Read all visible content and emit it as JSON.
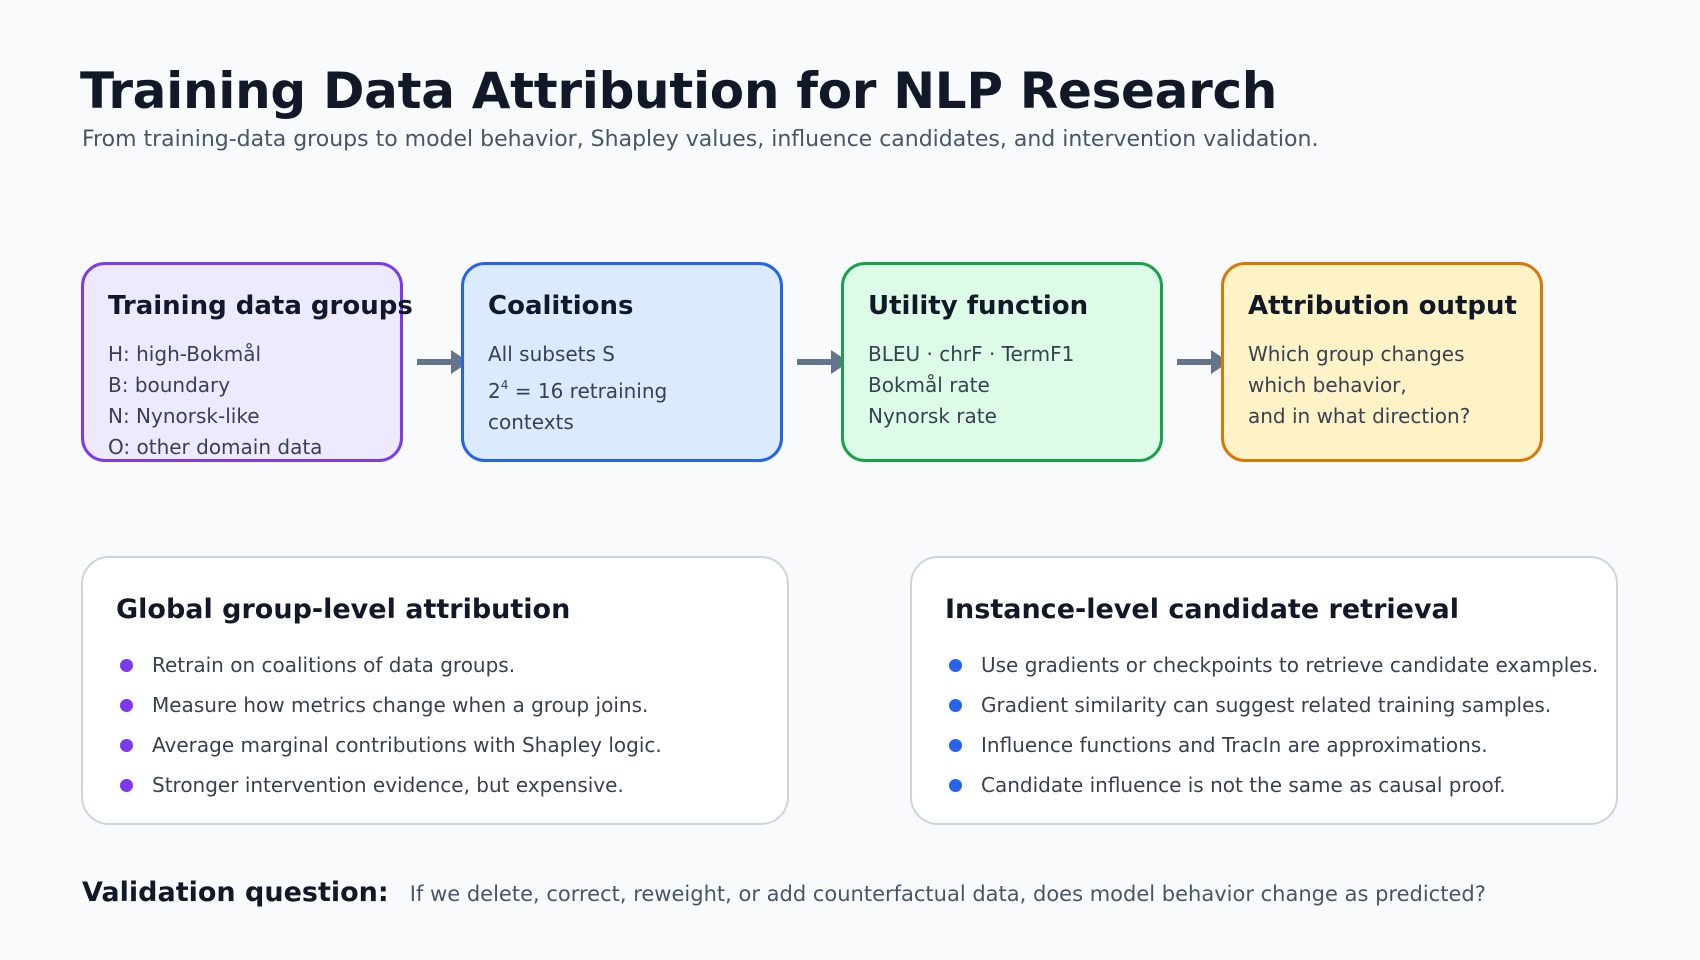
{
  "header": {
    "title": "Training Data Attribution for NLP Research",
    "subtitle": "From training-data groups to model behavior, Shapley values, influence candidates, and intervention validation."
  },
  "flow": [
    {
      "title": "Training data groups",
      "lines": [
        "H: high-Bokmål",
        "B: boundary",
        "N: Nynorsk-like",
        "O: other domain data"
      ],
      "border_color": "#7c3aed",
      "fill_color": "#ede9fe"
    },
    {
      "title": "Coalitions",
      "lines": [
        "All subsets S",
        "2",
        "4",
        " = 16 retraining",
        "contexts"
      ],
      "border_color": "#2563eb",
      "fill_color": "#dbeafe"
    },
    {
      "title": "Utility function",
      "lines": [
        "BLEU · chrF · TermF1",
        "Bokmål rate",
        "Nynorsk rate"
      ],
      "border_color": "#16a34a",
      "fill_color": "#dcfce7"
    },
    {
      "title": "Attribution output",
      "lines": [
        "Which group changes",
        "which behavior,",
        "and in what direction?"
      ],
      "border_color": "#d97706",
      "fill_color": "#fef3c7"
    }
  ],
  "arrow_color": "#64748b",
  "panels": {
    "global": {
      "title": "Global group-level attribution",
      "bullet_color": "#7c3aed",
      "items": [
        "Retrain on coalitions of data groups.",
        "Measure how metrics change when a group joins.",
        "Average marginal contributions with Shapley logic.",
        "Stronger intervention evidence, but expensive."
      ]
    },
    "instance": {
      "title": "Instance-level candidate retrieval",
      "bullet_color": "#2563eb",
      "items": [
        "Use gradients or checkpoints to retrieve candidate examples.",
        "Gradient similarity can suggest related training samples.",
        "Influence functions and TracIn are approximations.",
        "Candidate influence is not the same as causal proof."
      ]
    }
  },
  "validation": {
    "label": "Validation question:",
    "text": "If we delete, correct, reweight, or add counterfactual data, does model behavior change as predicted?"
  }
}
